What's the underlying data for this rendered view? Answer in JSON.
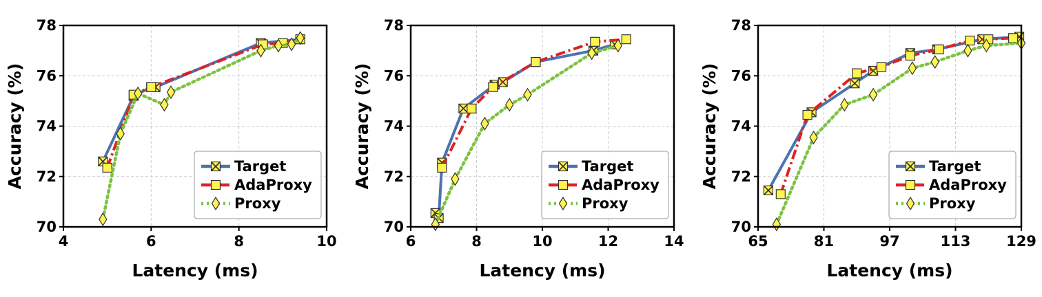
{
  "chart_data": [
    {
      "type": "line",
      "xlabel": "Latency (ms)",
      "ylabel": "Accuracy (%)",
      "xlim": [
        4,
        10
      ],
      "ylim": [
        70,
        78
      ],
      "xticks": [
        "4",
        "6",
        "8",
        "10"
      ],
      "yticks": [
        "70",
        "72",
        "74",
        "76",
        "78"
      ],
      "grid": true,
      "legend_position": "bottom-right",
      "series": [
        {
          "name": "Target",
          "color": "#4c72b0",
          "style": "solid",
          "marker": "x-square",
          "points": [
            [
              4.9,
              72.6
            ],
            [
              5.6,
              75.2
            ],
            [
              6.0,
              75.55
            ],
            [
              6.1,
              75.55
            ],
            [
              8.5,
              77.3
            ],
            [
              9.4,
              77.45
            ]
          ]
        },
        {
          "name": "AdaProxy",
          "color": "#dd2222",
          "style": "dashdot",
          "marker": "square",
          "points": [
            [
              5.0,
              72.35
            ],
            [
              5.6,
              75.25
            ],
            [
              6.0,
              75.55
            ],
            [
              8.55,
              77.25
            ],
            [
              9.0,
              77.3
            ],
            [
              9.4,
              77.45
            ]
          ]
        },
        {
          "name": "Proxy",
          "color": "#7dc242",
          "style": "dotted",
          "marker": "diamond",
          "points": [
            [
              4.9,
              70.3
            ],
            [
              5.3,
              73.7
            ],
            [
              5.7,
              75.3
            ],
            [
              6.3,
              74.85
            ],
            [
              6.45,
              75.35
            ],
            [
              8.5,
              77.0
            ],
            [
              8.9,
              77.2
            ],
            [
              9.2,
              77.25
            ],
            [
              9.4,
              77.5
            ]
          ]
        }
      ]
    },
    {
      "type": "line",
      "xlabel": "Latency (ms)",
      "ylabel": "Accuracy (%)",
      "xlim": [
        6,
        14
      ],
      "ylim": [
        70,
        78
      ],
      "xticks": [
        "6",
        "8",
        "10",
        "12",
        "14"
      ],
      "yticks": [
        "70",
        "72",
        "74",
        "76",
        "78"
      ],
      "grid": true,
      "legend_position": "bottom-right",
      "series": [
        {
          "name": "Target",
          "color": "#4c72b0",
          "style": "solid",
          "marker": "x-square",
          "points": [
            [
              6.75,
              70.55
            ],
            [
              6.85,
              70.35
            ],
            [
              6.95,
              72.55
            ],
            [
              7.6,
              74.7
            ],
            [
              8.55,
              75.65
            ],
            [
              8.8,
              75.75
            ],
            [
              9.8,
              76.55
            ],
            [
              11.55,
              77.0
            ],
            [
              12.2,
              77.25
            ]
          ]
        },
        {
          "name": "AdaProxy",
          "color": "#dd2222",
          "style": "dashdot",
          "marker": "square",
          "points": [
            [
              6.95,
              72.35
            ],
            [
              7.85,
              74.7
            ],
            [
              8.5,
              75.55
            ],
            [
              9.8,
              76.55
            ],
            [
              11.6,
              77.35
            ],
            [
              12.55,
              77.45
            ]
          ]
        },
        {
          "name": "Proxy",
          "color": "#7dc242",
          "style": "dotted",
          "marker": "diamond",
          "points": [
            [
              6.75,
              70.1
            ],
            [
              7.35,
              71.9
            ],
            [
              8.25,
              74.1
            ],
            [
              9.0,
              74.85
            ],
            [
              9.55,
              75.25
            ],
            [
              11.5,
              76.9
            ],
            [
              12.3,
              77.2
            ]
          ]
        }
      ]
    },
    {
      "type": "line",
      "xlabel": "Latency (ms)",
      "ylabel": "Accuracy (%)",
      "xlim": [
        65,
        129
      ],
      "ylim": [
        70,
        78
      ],
      "xticks": [
        "65",
        "81",
        "97",
        "113",
        "129"
      ],
      "yticks": [
        "70",
        "72",
        "74",
        "76",
        "78"
      ],
      "grid": true,
      "legend_position": "bottom-right",
      "series": [
        {
          "name": "Target",
          "color": "#4c72b0",
          "style": "solid",
          "marker": "x-square",
          "points": [
            [
              67.5,
              71.45
            ],
            [
              78.0,
              74.55
            ],
            [
              88.5,
              75.7
            ],
            [
              93.0,
              76.2
            ],
            [
              102.0,
              76.9
            ],
            [
              108.5,
              77.05
            ],
            [
              119.5,
              77.45
            ],
            [
              128.5,
              77.55
            ]
          ]
        },
        {
          "name": "AdaProxy",
          "color": "#dd2222",
          "style": "dashdot",
          "marker": "square",
          "points": [
            [
              70.5,
              71.3
            ],
            [
              77.0,
              74.45
            ],
            [
              89.0,
              76.1
            ],
            [
              95.0,
              76.35
            ],
            [
              102.0,
              76.8
            ],
            [
              109.0,
              77.05
            ],
            [
              116.5,
              77.4
            ],
            [
              121.0,
              77.45
            ],
            [
              127.0,
              77.5
            ]
          ]
        },
        {
          "name": "Proxy",
          "color": "#7dc242",
          "style": "dotted",
          "marker": "diamond",
          "points": [
            [
              69.5,
              70.1
            ],
            [
              78.5,
              73.55
            ],
            [
              86.0,
              74.85
            ],
            [
              93.0,
              75.25
            ],
            [
              102.5,
              76.3
            ],
            [
              108.0,
              76.55
            ],
            [
              116.0,
              77.0
            ],
            [
              120.5,
              77.2
            ],
            [
              129.0,
              77.3
            ]
          ]
        }
      ]
    }
  ]
}
